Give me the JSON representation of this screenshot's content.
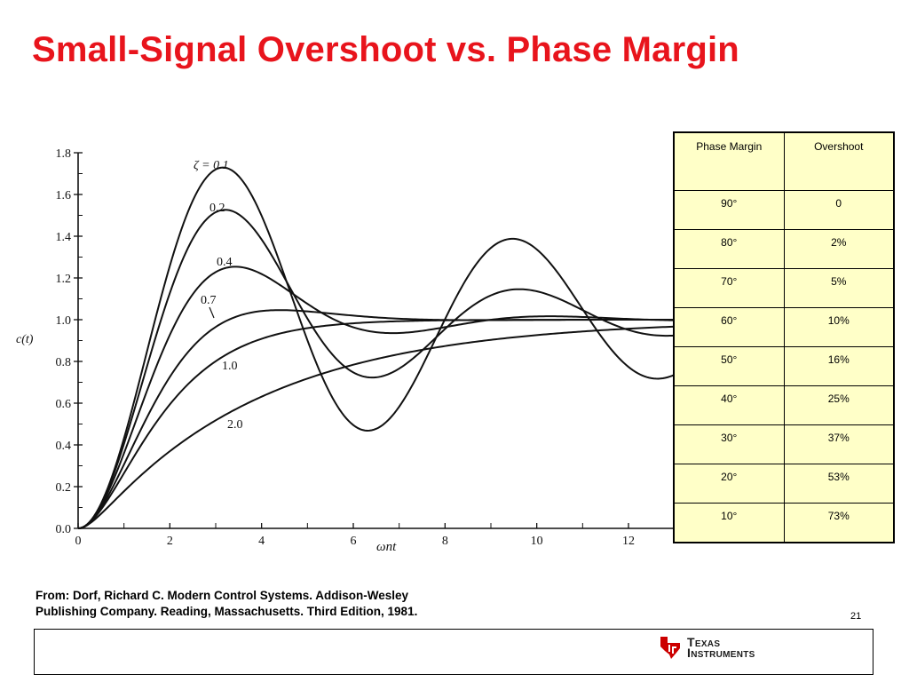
{
  "slide": {
    "title": "Small-Signal Overshoot vs. Phase Margin",
    "page_number": "21",
    "source_lines": [
      "From: Dorf, Richard C.  Modern Control Systems. Addison-Wesley",
      "Publishing Company. Reading, Massachusetts. Third Edition, 1981."
    ],
    "logo": {
      "line1": "Texas",
      "line2": "Instruments",
      "color": "#cc0000"
    },
    "title_color": "#e8141c"
  },
  "table": {
    "headers": [
      "Phase Margin",
      "Overshoot"
    ],
    "rows": [
      [
        "90°",
        "0"
      ],
      [
        "80°",
        "2%"
      ],
      [
        "70°",
        "5%"
      ],
      [
        "60°",
        "10%"
      ],
      [
        "50°",
        "16%"
      ],
      [
        "40°",
        "25%"
      ],
      [
        "30°",
        "37%"
      ],
      [
        "20°",
        "53%"
      ],
      [
        "10°",
        "73%"
      ]
    ],
    "background": "#ffffc8"
  },
  "chart_data": {
    "type": "line",
    "xlabel": "ωnt",
    "ylabel": "c(t)",
    "xlim": [
      0,
      13.2
    ],
    "ylim": [
      0,
      1.8
    ],
    "x_ticks": [
      "0",
      "2",
      "4",
      "6",
      "8",
      "10",
      "12"
    ],
    "y_ticks": [
      "0.0",
      "0.2",
      "0.4",
      "0.6",
      "0.8",
      "1.0",
      "1.2",
      "1.4",
      "1.6",
      "1.8"
    ],
    "grid": false,
    "series": [
      {
        "name": "ζ = 0.1",
        "zeta": 0.1
      },
      {
        "name": "0.2",
        "zeta": 0.2
      },
      {
        "name": "0.4",
        "zeta": 0.4
      },
      {
        "name": "0.7",
        "zeta": 0.7
      },
      {
        "name": "1.0",
        "zeta": 1.0
      },
      {
        "name": "2.0",
        "zeta": 2.0
      }
    ]
  }
}
